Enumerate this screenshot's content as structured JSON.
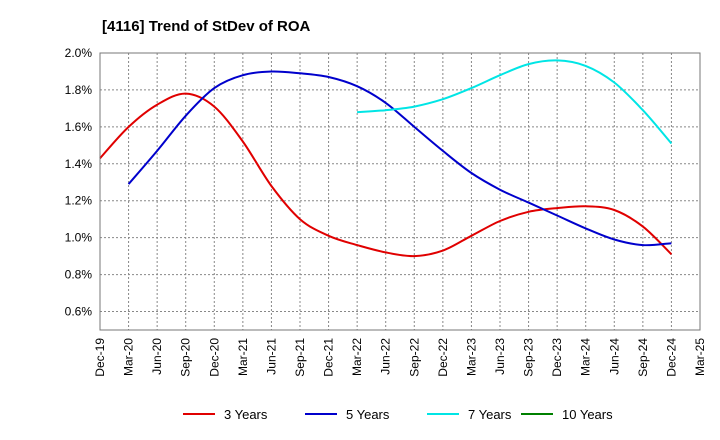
{
  "chart_data": {
    "type": "line",
    "title": "[4116]  Trend of StDev of ROA",
    "xlabel": "",
    "ylabel": "",
    "grid": true,
    "legend_position": "bottom",
    "x_ticks": [
      "Dec-19",
      "Mar-20",
      "Jun-20",
      "Sep-20",
      "Dec-20",
      "Mar-21",
      "Jun-21",
      "Sep-21",
      "Dec-21",
      "Mar-22",
      "Jun-22",
      "Sep-22",
      "Dec-22",
      "Mar-23",
      "Jun-23",
      "Sep-23",
      "Dec-23",
      "Mar-24",
      "Jun-24",
      "Sep-24",
      "Dec-24",
      "Mar-25"
    ],
    "y_ticks": [
      "0.6%",
      "0.8%",
      "1.0%",
      "1.2%",
      "1.4%",
      "1.6%",
      "1.8%",
      "2.0%"
    ],
    "y_tick_values": [
      0.6,
      0.8,
      1.0,
      1.2,
      1.4,
      1.6,
      1.8,
      2.0
    ],
    "ylim": [
      0.5,
      2.0
    ],
    "series": [
      {
        "name": "3 Years",
        "color": "#e00000",
        "x": [
          "Dec-19",
          "Mar-20",
          "Jun-20",
          "Sep-20",
          "Dec-20",
          "Mar-21",
          "Jun-21",
          "Sep-21",
          "Dec-21",
          "Mar-22",
          "Jun-22",
          "Sep-22",
          "Dec-22",
          "Mar-23",
          "Jun-23",
          "Sep-23",
          "Dec-23",
          "Mar-24",
          "Jun-24",
          "Sep-24",
          "Dec-24"
        ],
        "values": [
          1.43,
          1.6,
          1.72,
          1.78,
          1.71,
          1.52,
          1.28,
          1.1,
          1.01,
          0.96,
          0.92,
          0.9,
          0.93,
          1.01,
          1.09,
          1.14,
          1.16,
          1.17,
          1.15,
          1.06,
          0.91
        ]
      },
      {
        "name": "5 Years",
        "color": "#0000cc",
        "x": [
          "Mar-20",
          "Jun-20",
          "Sep-20",
          "Dec-20",
          "Mar-21",
          "Jun-21",
          "Sep-21",
          "Dec-21",
          "Mar-22",
          "Jun-22",
          "Sep-22",
          "Dec-22",
          "Mar-23",
          "Jun-23",
          "Sep-23",
          "Dec-23",
          "Mar-24",
          "Jun-24",
          "Sep-24",
          "Dec-24"
        ],
        "values": [
          1.29,
          1.47,
          1.66,
          1.81,
          1.88,
          1.9,
          1.89,
          1.87,
          1.82,
          1.73,
          1.6,
          1.47,
          1.35,
          1.26,
          1.19,
          1.12,
          1.05,
          0.99,
          0.96,
          0.97
        ]
      },
      {
        "name": "7 Years",
        "color": "#00e5e5",
        "x": [
          "Mar-22",
          "Jun-22",
          "Sep-22",
          "Dec-22",
          "Mar-23",
          "Jun-23",
          "Sep-23",
          "Dec-23",
          "Mar-24",
          "Jun-24",
          "Sep-24",
          "Dec-24"
        ],
        "values": [
          1.68,
          1.69,
          1.71,
          1.75,
          1.81,
          1.88,
          1.94,
          1.96,
          1.93,
          1.84,
          1.69,
          1.51
        ]
      },
      {
        "name": "10 Years",
        "color": "#008000",
        "x": [],
        "values": []
      }
    ]
  }
}
